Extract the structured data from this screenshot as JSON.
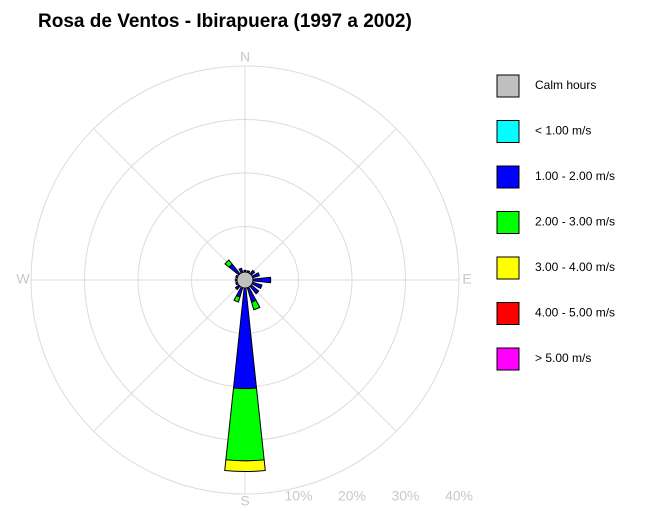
{
  "chart_data": {
    "type": "windrose",
    "title": "Rosa de Ventos - Ibirapuera (1997 a 2002)",
    "categories": [
      "N",
      null,
      null,
      null,
      "E",
      null,
      null,
      null,
      "S",
      null,
      null,
      null,
      "W",
      null,
      null,
      null
    ],
    "calm": {
      "name": "Calm hours",
      "color": "#c0c0c0",
      "value": 1.5
    },
    "series": [
      {
        "name": "< 1.00 m/s",
        "color": "#00ffff",
        "values": [
          0.3,
          0.3,
          0.3,
          0.3,
          0.3,
          0.3,
          0.3,
          0.3,
          0.3,
          0.3,
          0.3,
          0.3,
          0.3,
          0.3,
          0.3,
          0.3
        ]
      },
      {
        "name": "1.00 - 2.00 m/s",
        "color": "#0000ff",
        "values": [
          1.5,
          1.5,
          2,
          2.5,
          4.5,
          3,
          3,
          4,
          20,
          3,
          2,
          1.5,
          1.5,
          1.5,
          3.5,
          2
        ]
      },
      {
        "name": "2.00 - 3.00 m/s",
        "color": "#00ff00",
        "values": [
          0,
          0,
          0,
          0,
          0,
          0,
          0,
          1.5,
          13.5,
          1,
          0,
          0,
          0,
          0,
          1,
          0
        ]
      },
      {
        "name": "3.00 - 4.00 m/s",
        "color": "#ffff00",
        "values": [
          0,
          0,
          0,
          0,
          0,
          0,
          0,
          0,
          2,
          0,
          0,
          0,
          0,
          0,
          0,
          0
        ]
      },
      {
        "name": "4.00 - 5.00 m/s",
        "color": "#ff0000",
        "values": [
          0,
          0,
          0,
          0,
          0,
          0,
          0,
          0,
          0,
          0,
          0,
          0,
          0,
          0,
          0,
          0
        ]
      },
      {
        "name": "> 5.00 m/s",
        "color": "#ff00ff",
        "values": [
          0,
          0,
          0,
          0,
          0,
          0,
          0,
          0,
          0,
          0,
          0,
          0,
          0,
          0,
          0,
          0
        ]
      }
    ],
    "rlim": [
      0,
      40
    ],
    "rticks": [
      {
        "value": 10,
        "label": "10%"
      },
      {
        "value": 20,
        "label": "20%"
      },
      {
        "value": 30,
        "label": "30%"
      },
      {
        "value": 40,
        "label": "40%"
      }
    ],
    "grid": true
  }
}
